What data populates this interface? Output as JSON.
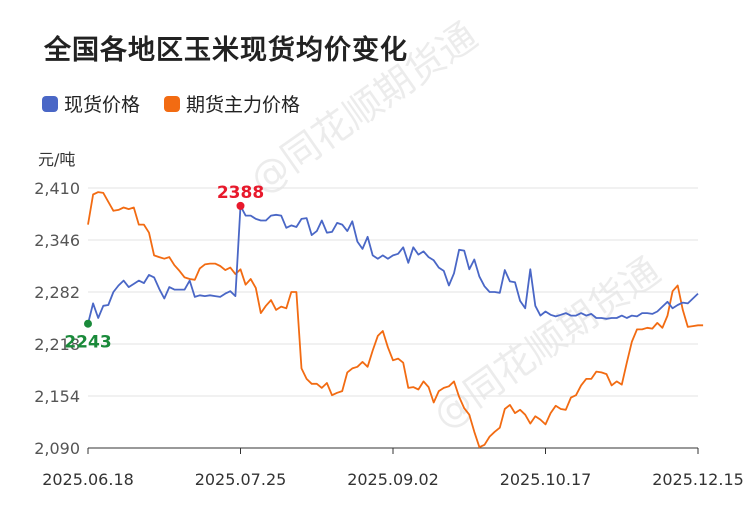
{
  "title": "全国各地区玉米现货均价变化",
  "unit": "元/吨",
  "watermark": "@同花顺期货通",
  "colors": {
    "spot": "#4a67c6",
    "futures": "#f26b12",
    "max_label": "#e8192c",
    "min_label": "#1a8a3a"
  },
  "chart_data": {
    "type": "line",
    "title": "全国各地区玉米现货均价变化",
    "ylabel": "元/吨",
    "ylim": [
      2090,
      2410
    ],
    "yticks": [
      2090,
      2154,
      2218,
      2282,
      2346,
      2410
    ],
    "ytick_labels": [
      "2,090",
      "2,154",
      "2,218",
      "2,282",
      "2,346",
      "2,410"
    ],
    "xtick_labels": [
      "2025.06.18",
      "2025.07.25",
      "2025.09.02",
      "2025.10.17",
      "2025.12.15"
    ],
    "legend_position": "top-left",
    "grid": true,
    "series": [
      {
        "name": "现货价格",
        "color": "#4a67c6",
        "values": [
          2243,
          2268,
          2250,
          2265,
          2266,
          2282,
          2290,
          2296,
          2288,
          2292,
          2296,
          2293,
          2303,
          2300,
          2286,
          2274,
          2288,
          2285,
          2285,
          2285,
          2296,
          2276,
          2278,
          2277,
          2278,
          2277,
          2276,
          2280,
          2283,
          2277,
          2388,
          2376,
          2376,
          2372,
          2370,
          2370,
          2376,
          2377,
          2376,
          2361,
          2364,
          2362,
          2372,
          2373,
          2352,
          2357,
          2370,
          2355,
          2356,
          2367,
          2365,
          2357,
          2369,
          2344,
          2335,
          2350,
          2327,
          2323,
          2327,
          2323,
          2327,
          2329,
          2337,
          2318,
          2337,
          2328,
          2332,
          2325,
          2321,
          2312,
          2308,
          2290,
          2305,
          2334,
          2333,
          2310,
          2322,
          2301,
          2289,
          2282,
          2282,
          2281,
          2309,
          2295,
          2294,
          2271,
          2262,
          2310,
          2265,
          2253,
          2258,
          2254,
          2252,
          2254,
          2256,
          2253,
          2253,
          2256,
          2253,
          2255,
          2250,
          2250,
          2249,
          2250,
          2250,
          2253,
          2250,
          2253,
          2252,
          2256,
          2256,
          2255,
          2258,
          2264,
          2270,
          2262,
          2266,
          2269,
          2268,
          2274,
          2280
        ]
      },
      {
        "name": "期货主力价格",
        "color": "#f26b12",
        "values": [
          2365,
          2402,
          2405,
          2404,
          2393,
          2382,
          2383,
          2386,
          2384,
          2386,
          2365,
          2365,
          2355,
          2327,
          2325,
          2323,
          2325,
          2315,
          2308,
          2300,
          2298,
          2297,
          2311,
          2316,
          2317,
          2317,
          2314,
          2309,
          2312,
          2304,
          2310,
          2291,
          2298,
          2287,
          2256,
          2265,
          2272,
          2260,
          2264,
          2262,
          2282,
          2282,
          2188,
          2175,
          2169,
          2169,
          2164,
          2170,
          2155,
          2158,
          2160,
          2183,
          2188,
          2190,
          2196,
          2190,
          2210,
          2228,
          2234,
          2214,
          2198,
          2200,
          2195,
          2164,
          2165,
          2162,
          2172,
          2165,
          2146,
          2160,
          2164,
          2166,
          2172,
          2153,
          2139,
          2131,
          2110,
          2091,
          2094,
          2104,
          2110,
          2115,
          2138,
          2143,
          2133,
          2137,
          2131,
          2120,
          2129,
          2125,
          2119,
          2133,
          2142,
          2138,
          2137,
          2152,
          2155,
          2167,
          2175,
          2175,
          2184,
          2183,
          2181,
          2167,
          2172,
          2168,
          2195,
          2221,
          2236,
          2236,
          2238,
          2237,
          2244,
          2238,
          2253,
          2283,
          2290,
          2260,
          2239,
          2240,
          2241,
          2241
        ]
      }
    ],
    "annotations": [
      {
        "label": "2388",
        "series": "现货价格",
        "index": 30,
        "value": 2388,
        "type": "max"
      },
      {
        "label": "2243",
        "series": "现货价格",
        "index": 0,
        "value": 2243,
        "type": "min"
      }
    ]
  }
}
